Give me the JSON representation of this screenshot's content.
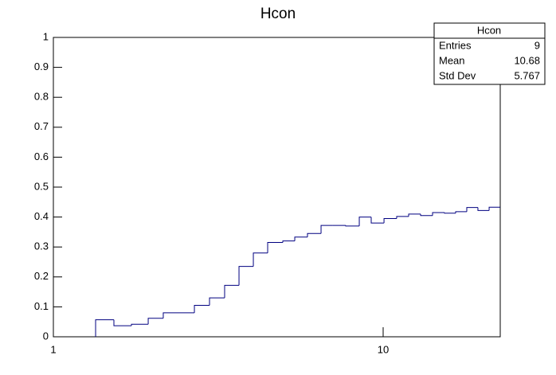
{
  "chart_data": {
    "type": "histogram",
    "title": "Hcon",
    "bins": [
      1.343,
      1.526,
      1.725,
      1.939,
      2.154,
      2.408,
      2.677,
      2.975,
      3.306,
      3.655,
      4.04,
      4.465,
      4.963,
      5.395,
      5.896,
      6.482,
      7.042,
      7.7,
      8.465,
      9.2,
      10.06,
      10.99,
      11.95,
      12.99,
      14.12,
      15.35,
      16.59,
      17.93,
      19.38,
      20.96,
      22.65
    ],
    "counts": [
      0.057,
      0.037,
      0.042,
      0.062,
      0.08,
      0.08,
      0.105,
      0.13,
      0.172,
      0.235,
      0.28,
      0.315,
      0.32,
      0.333,
      0.345,
      0.372,
      0.372,
      0.37,
      0.4,
      0.38,
      0.395,
      0.402,
      0.41,
      0.405,
      0.415,
      0.413,
      0.418,
      0.432,
      0.422,
      0.433
    ],
    "color": "#000080",
    "xlim": [
      1,
      22.65
    ],
    "xticks": [
      1,
      10
    ],
    "xscale": "log",
    "ylim": [
      0,
      1
    ],
    "yticks": [
      0,
      0.1,
      0.2,
      0.3,
      0.4,
      0.5,
      0.6,
      0.7,
      0.8,
      0.9,
      1
    ],
    "stats": {
      "title": "Hcon",
      "rows": [
        [
          "Entries",
          9
        ],
        [
          "Mean",
          10.68
        ],
        [
          "Std Dev",
          5.767
        ]
      ]
    }
  }
}
